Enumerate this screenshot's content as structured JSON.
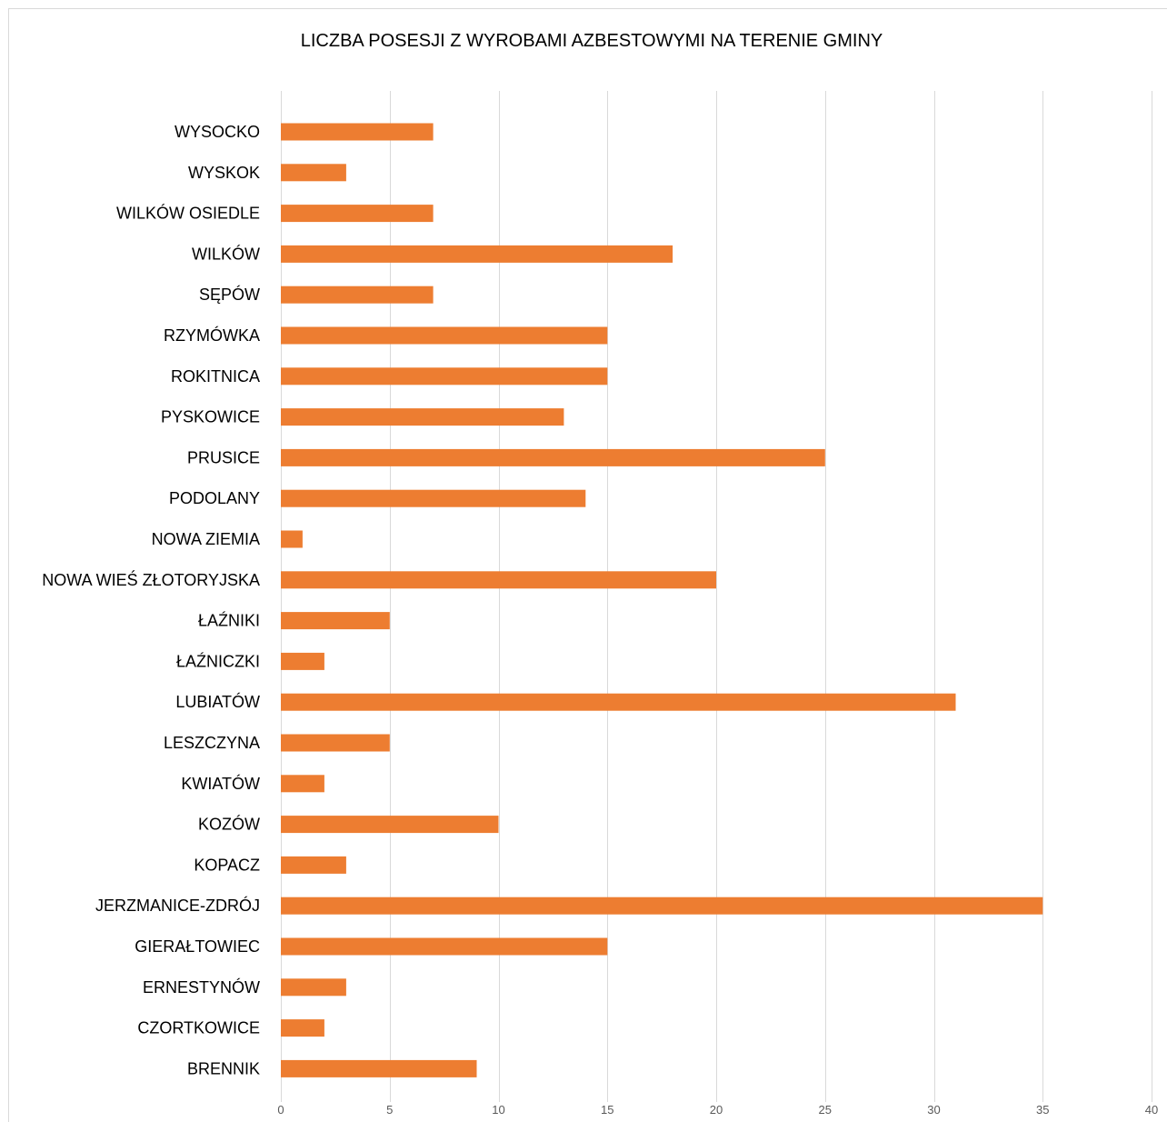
{
  "chart_data": {
    "type": "bar",
    "orientation": "horizontal",
    "title": "LICZBA POSESJI Z WYROBAMI AZBESTOWYMI NA TERENIE GMINY",
    "xlabel": "",
    "ylabel": "",
    "xlim": [
      0,
      40
    ],
    "ticks": [
      0,
      5,
      10,
      15,
      20,
      25,
      30,
      35,
      40
    ],
    "tick_labels": [
      "0",
      "5",
      "10",
      "15",
      "20",
      "25",
      "30",
      "35",
      "40"
    ],
    "grid": "vertical",
    "legend": "none",
    "bar_color": "#ed7d31",
    "categories": [
      "WYSOCKO",
      "WYSKOK",
      "WILKÓW OSIEDLE",
      "WILKÓW",
      "SĘPÓW",
      "RZYMÓWKA",
      "ROKITNICA",
      "PYSKOWICE",
      "PRUSICE",
      "PODOLANY",
      "NOWA ZIEMIA",
      "NOWA WIEŚ ZŁOTORYJSKA",
      "ŁAŹNIKI",
      "ŁAŹNICZKI",
      "LUBIATÓW",
      "LESZCZYNA",
      "KWIATÓW",
      "KOZÓW",
      "KOPACZ",
      "JERZMANICE-ZDRÓJ",
      "GIERAŁTOWIEC",
      "ERNESTYNÓW",
      "CZORTKOWICE",
      "BRENNIK"
    ],
    "values": [
      7,
      3,
      7,
      18,
      7,
      15,
      15,
      13,
      25,
      14,
      1,
      20,
      5,
      2,
      31,
      5,
      2,
      10,
      3,
      35,
      15,
      3,
      2,
      9
    ]
  }
}
